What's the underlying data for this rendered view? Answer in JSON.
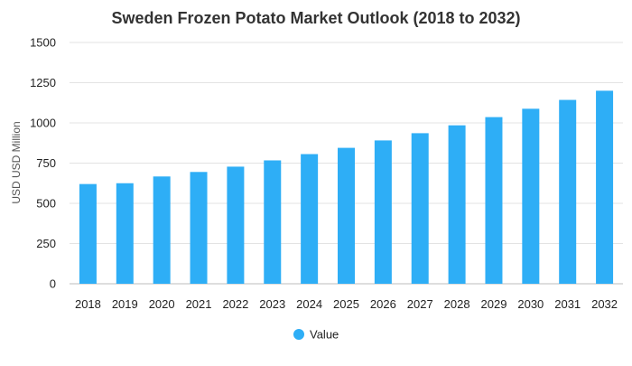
{
  "chart_data": {
    "type": "bar",
    "title": "Sweden Frozen Potato Market Outlook (2018 to 2032)",
    "xlabel": "",
    "ylabel": "USD USD Million",
    "categories": [
      "2018",
      "2019",
      "2020",
      "2021",
      "2022",
      "2023",
      "2024",
      "2025",
      "2026",
      "2027",
      "2028",
      "2029",
      "2030",
      "2031",
      "2032"
    ],
    "series": [
      {
        "name": "Value",
        "values": [
          620,
          625,
          667,
          695,
          728,
          767,
          806,
          845,
          891,
          936,
          985,
          1036,
          1088,
          1143,
          1200
        ]
      }
    ],
    "ylim": [
      0,
      1500
    ],
    "yticks": [
      0,
      250,
      500,
      750,
      1000,
      1250,
      1500
    ],
    "grid": true,
    "legend": "bottom",
    "colors": {
      "bar": "#2eaef6",
      "grid": "#e3e3e3",
      "text": "#222222",
      "title": "#333333"
    }
  }
}
